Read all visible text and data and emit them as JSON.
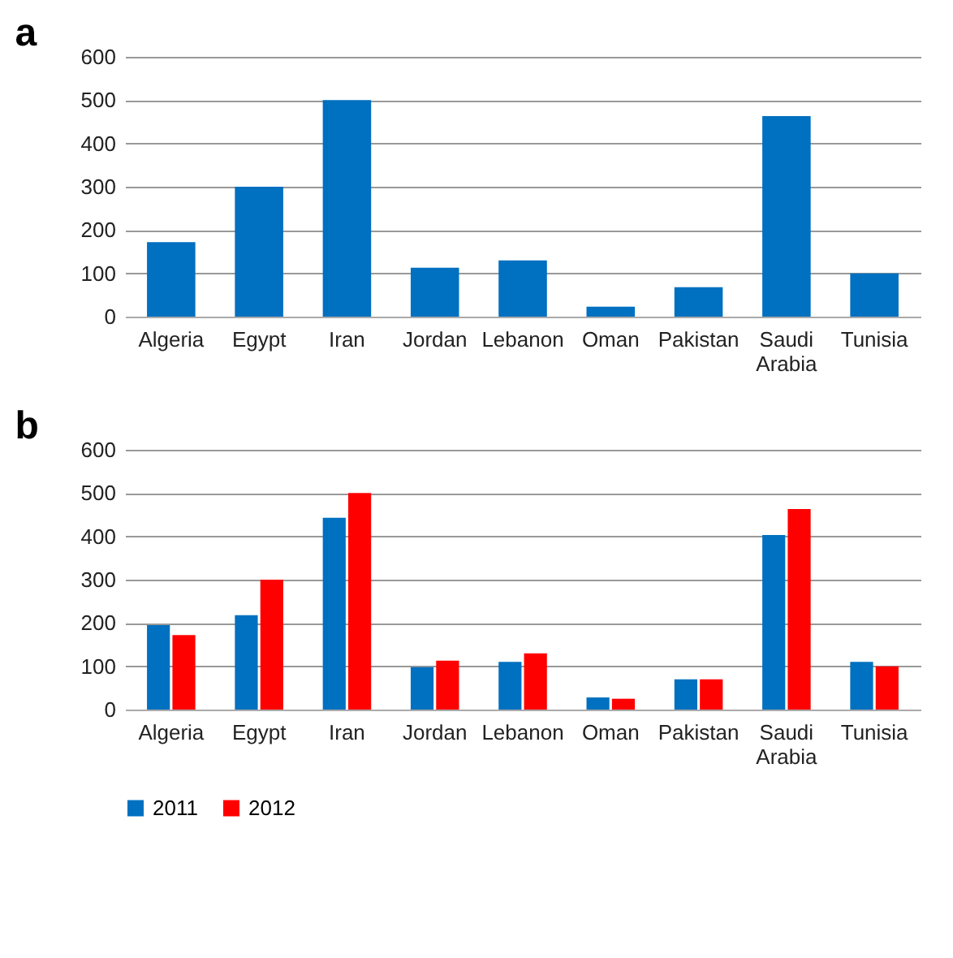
{
  "chart_data": [
    {
      "type": "bar",
      "title": "a",
      "categories": [
        "Algeria",
        "Egypt",
        "Iran",
        "Jordan",
        "Lebanon",
        "Oman",
        "Pakistan",
        "Saudi Arabia",
        "Tunisia"
      ],
      "values": [
        172,
        300,
        500,
        113,
        130,
        23,
        68,
        463,
        100
      ],
      "color": "#0070c0",
      "ylim": [
        0,
        600
      ],
      "yticks": [
        0,
        100,
        200,
        300,
        400,
        500,
        600
      ],
      "grid": "y"
    },
    {
      "type": "bar",
      "title": "b",
      "categories": [
        "Algeria",
        "Egypt",
        "Iran",
        "Jordan",
        "Lebanon",
        "Oman",
        "Pakistan",
        "Saudi Arabia",
        "Tunisia"
      ],
      "series": [
        {
          "name": "2011",
          "color": "#0070c0",
          "values": [
            195,
            218,
            443,
            98,
            110,
            28,
            70,
            403,
            110
          ]
        },
        {
          "name": "2012",
          "color": "#ff0000",
          "values": [
            172,
            300,
            500,
            113,
            130,
            25,
            70,
            463,
            100
          ]
        }
      ],
      "ylim": [
        0,
        600
      ],
      "yticks": [
        0,
        100,
        200,
        300,
        400,
        500,
        600
      ],
      "grid": "y",
      "legend": "bottom"
    }
  ]
}
